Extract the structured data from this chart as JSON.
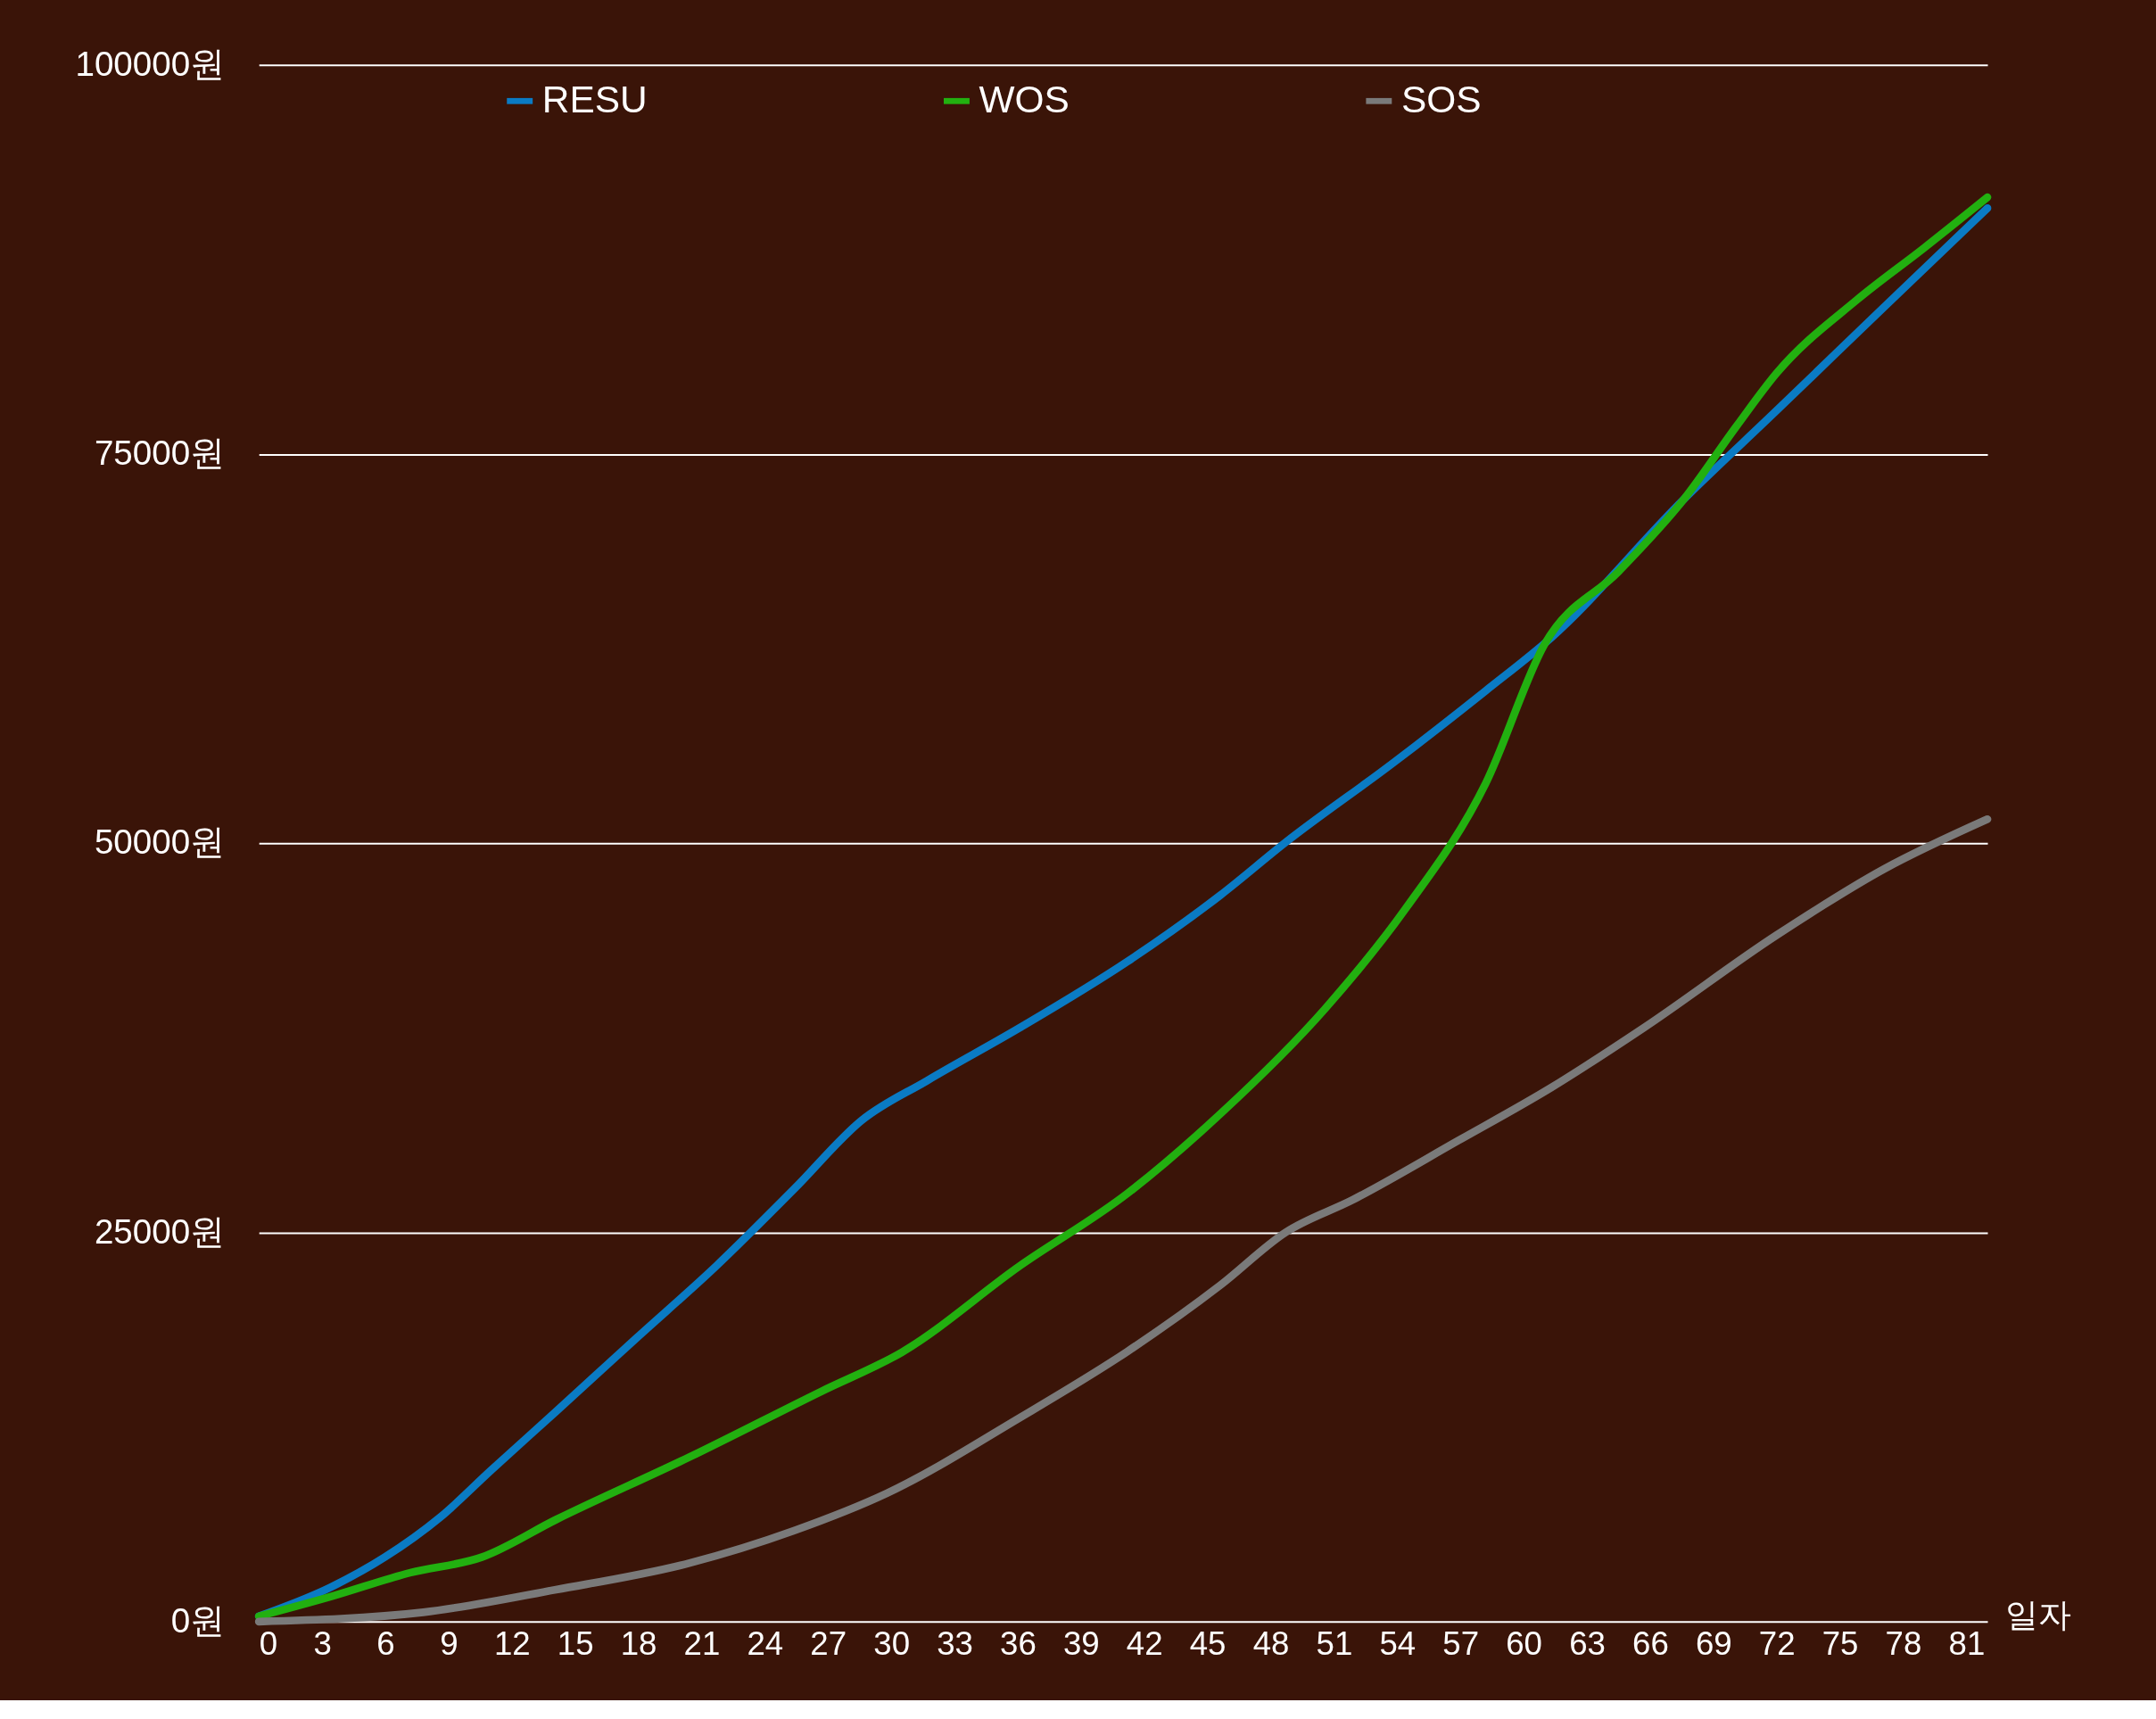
{
  "chart_data": {
    "type": "line",
    "xlabel": "일자",
    "x": [
      0,
      3.4,
      6,
      8.6,
      11,
      14.1,
      17.9,
      21.7,
      25.4,
      28.6,
      31.7,
      36.1,
      41.2,
      45.6,
      48.7,
      53.8,
      58.2,
      61.3,
      67.6,
      72,
      77.1,
      82
    ],
    "series": [
      {
        "name": "RESU",
        "color": "#0a7bc4",
        "values": [
          340,
          2200,
          4160,
          6700,
          9700,
          13500,
          18200,
          22850,
          27800,
          32200,
          34750,
          38150,
          42400,
          46650,
          50050,
          55150,
          59800,
          63200,
          72100,
          77800,
          84450,
          90800
        ]
      },
      {
        "name": "WOS",
        "color": "#22b010",
        "x": [
          0,
          3.4,
          7.2,
          10.6,
          14.1,
          20.4,
          26.7,
          30.5,
          36.1,
          41.2,
          45.6,
          50.6,
          54.4,
          58.2,
          61,
          64.5,
          67.6,
          70.1,
          72,
          75.8,
          79,
          82
        ],
        "values": [
          340,
          1600,
          3150,
          4150,
          6550,
          10550,
          14800,
          17300,
          22850,
          27500,
          32600,
          39400,
          45800,
          53850,
          62800,
          67450,
          72100,
          76800,
          80200,
          84900,
          88250,
          91500
        ]
      },
      {
        "name": "SOS",
        "color": "#7a7a7a",
        "x": [
          0,
          7.8,
          14.1,
          20.4,
          25.4,
          29.8,
          36.1,
          41.2,
          45.6,
          48.7,
          51.9,
          56.9,
          61.3,
          65.7,
          72,
          77.1,
          82
        ],
        "values": [
          0,
          600,
          2050,
          3750,
          5850,
          8250,
          13100,
          17350,
          21600,
          25000,
          27100,
          30900,
          34300,
          38150,
          44100,
          48350,
          51550
        ]
      }
    ],
    "xlim": [
      0,
      82
    ],
    "xticks": [
      0,
      3,
      6,
      9,
      12,
      15,
      18,
      21,
      24,
      27,
      30,
      33,
      36,
      39,
      42,
      45,
      48,
      51,
      54,
      57,
      60,
      63,
      66,
      69,
      72,
      75,
      78,
      81
    ],
    "ylim": [
      0,
      100000
    ],
    "yticks": [
      {
        "value": 0,
        "label": "0원"
      },
      {
        "value": 25000,
        "label": "25000원"
      },
      {
        "value": 50000,
        "label": "50000원"
      },
      {
        "value": 75000,
        "label": "75000원"
      },
      {
        "value": 100000,
        "label": "100000원"
      }
    ],
    "grid": "y",
    "legend": "top",
    "marker": "none",
    "line_style": "solid"
  }
}
